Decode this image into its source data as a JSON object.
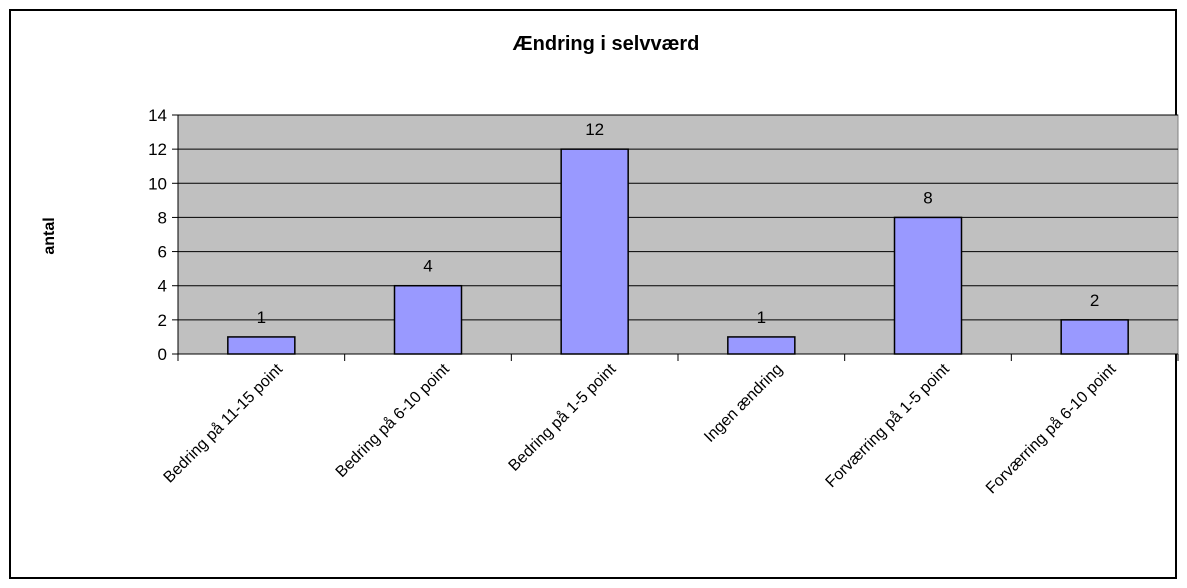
{
  "chart_data": {
    "type": "bar",
    "title": "Ændring i selvværd",
    "xlabel": "",
    "ylabel": "antal",
    "categories": [
      "Bedring på 11-15 point",
      "Bedring på 6-10 point",
      "Bedring på 1-5 point",
      "Ingen ændring",
      "Forværring på 1-5 point",
      "Forværring på 6-10 point"
    ],
    "values": [
      1,
      4,
      12,
      1,
      8,
      2
    ],
    "ylim": [
      0,
      14
    ],
    "yticks": [
      "0",
      "2",
      "4",
      "6",
      "8",
      "10",
      "12",
      "14"
    ],
    "data_labels": [
      "1",
      "4",
      "12",
      "1",
      "8",
      "2"
    ],
    "grid": true,
    "legend": "none",
    "colors": {
      "plot_background": "#c0c0c0",
      "bar_fill": "#9999ff",
      "bar_stroke": "#000000",
      "gridline": "#000000"
    }
  }
}
